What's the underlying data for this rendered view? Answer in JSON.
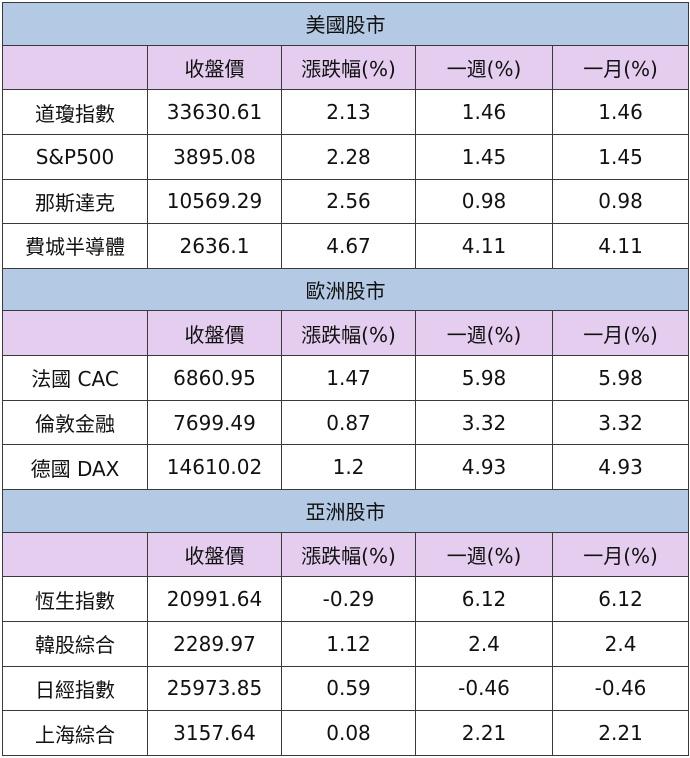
{
  "sections": [
    {
      "title": "美國股市",
      "columns": [
        "",
        "收盤價",
        "漲跌幅(%)",
        "一週(%)",
        "一月(%)"
      ],
      "rows": [
        [
          "道瓊指數",
          "33630.61",
          "2.13",
          "1.46",
          "1.46"
        ],
        [
          "S&P500",
          "3895.08",
          "2.28",
          "1.45",
          "1.45"
        ],
        [
          "那斯達克",
          "10569.29",
          "2.56",
          "0.98",
          "0.98"
        ],
        [
          "費城半導體",
          "2636.1",
          "4.67",
          "4.11",
          "4.11"
        ]
      ]
    },
    {
      "title": "歐洲股市",
      "columns": [
        "",
        "收盤價",
        "漲跌幅(%)",
        "一週(%)",
        "一月(%)"
      ],
      "rows": [
        [
          "法國 CAC",
          "6860.95",
          "1.47",
          "5.98",
          "5.98"
        ],
        [
          "倫敦金融",
          "7699.49",
          "0.87",
          "3.32",
          "3.32"
        ],
        [
          "德國 DAX",
          "14610.02",
          "1.2",
          "4.93",
          "4.93"
        ]
      ]
    },
    {
      "title": "亞洲股市",
      "columns": [
        "",
        "收盤價",
        "漲跌幅(%)",
        "一週(%)",
        "一月(%)"
      ],
      "rows": [
        [
          "恆生指數",
          "20991.64",
          "-0.29",
          "6.12",
          "6.12"
        ],
        [
          "韓股綜合",
          "2289.97",
          "1.12",
          "2.4",
          "2.4"
        ],
        [
          "日經指數",
          "25973.85",
          "0.59",
          "-0.46",
          "-0.46"
        ],
        [
          "上海綜合",
          "3157.64",
          "0.08",
          "2.21",
          "2.21"
        ]
      ]
    }
  ],
  "colors": {
    "section_header_bg": "#b4c9e3",
    "column_header_bg": "#e4cdee",
    "border": "#3a3a3a"
  }
}
